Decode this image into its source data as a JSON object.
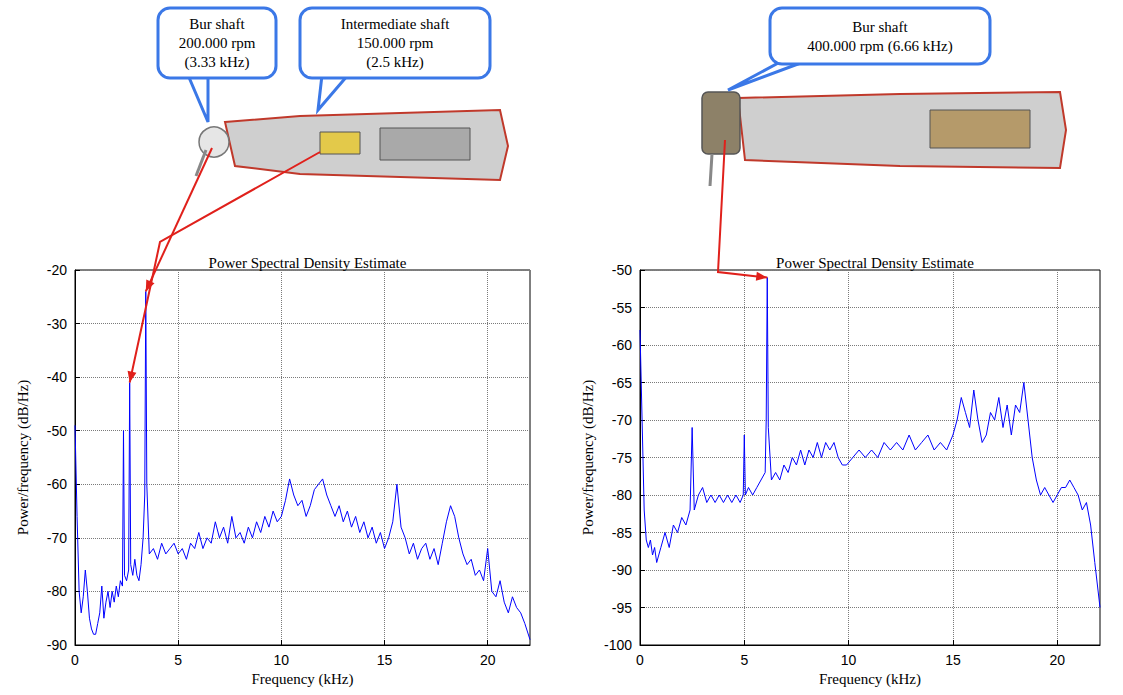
{
  "chart_data": [
    {
      "type": "line",
      "title": "Power Spectral Density Estimate",
      "x_label": "Frequency (kHz)",
      "y_label": "Power/frequency (dB/Hz)",
      "color": "#0000ff",
      "grid": true,
      "xlim": [
        0,
        22.05
      ],
      "xticks": [
        0,
        5,
        10,
        15,
        20
      ],
      "ylim": [
        -90,
        -20
      ],
      "yticks": [
        -90,
        -80,
        -70,
        -60,
        -50,
        -40,
        -30,
        -20
      ],
      "x": [
        0,
        0.1,
        0.2,
        0.3,
        0.4,
        0.5,
        0.6,
        0.7,
        0.8,
        0.9,
        1.0,
        1.1,
        1.2,
        1.3,
        1.4,
        1.5,
        1.6,
        1.7,
        1.8,
        1.9,
        2.0,
        2.1,
        2.2,
        2.3,
        2.35,
        2.4,
        2.5,
        2.6,
        2.65,
        2.7,
        2.8,
        2.9,
        3.0,
        3.1,
        3.2,
        3.3,
        3.38,
        3.43,
        3.48,
        3.6,
        3.8,
        4.0,
        4.2,
        4.4,
        4.6,
        4.8,
        5.0,
        5.2,
        5.4,
        5.6,
        5.8,
        6.0,
        6.2,
        6.4,
        6.6,
        6.8,
        7.0,
        7.2,
        7.4,
        7.6,
        7.8,
        8.0,
        8.2,
        8.4,
        8.6,
        8.8,
        9.0,
        9.2,
        9.4,
        9.6,
        9.8,
        10.0,
        10.2,
        10.4,
        10.6,
        10.8,
        11.0,
        11.2,
        11.4,
        11.6,
        11.8,
        12.0,
        12.2,
        12.4,
        12.6,
        12.8,
        13.0,
        13.2,
        13.4,
        13.6,
        13.8,
        14.0,
        14.2,
        14.4,
        14.6,
        14.8,
        15.0,
        15.2,
        15.4,
        15.6,
        15.8,
        16.0,
        16.2,
        16.4,
        16.6,
        16.8,
        17.0,
        17.2,
        17.4,
        17.6,
        17.8,
        18.0,
        18.2,
        18.4,
        18.6,
        18.8,
        19.0,
        19.2,
        19.4,
        19.6,
        19.8,
        20.0,
        20.2,
        20.4,
        20.6,
        20.8,
        21.0,
        21.2,
        21.4,
        21.6,
        21.8,
        22.05
      ],
      "values": [
        -49,
        -66,
        -80,
        -84,
        -81,
        -76,
        -80,
        -85,
        -87,
        -88,
        -88,
        -86,
        -84,
        -79,
        -85,
        -82,
        -80,
        -83,
        -80,
        -82,
        -79,
        -81,
        -78,
        -79,
        -50,
        -77,
        -78,
        -76,
        -41,
        -75,
        -77,
        -74,
        -77,
        -78,
        -75,
        -70,
        -62,
        -24,
        -60,
        -73,
        -72,
        -74,
        -71,
        -73,
        -72,
        -71,
        -73,
        -72,
        -74,
        -71,
        -72,
        -69,
        -72,
        -70,
        -71,
        -67,
        -70,
        -68,
        -71,
        -66,
        -70,
        -69,
        -71,
        -68,
        -70,
        -67,
        -69,
        -66,
        -68,
        -65,
        -67,
        -66,
        -63,
        -59,
        -62,
        -64,
        -63,
        -66,
        -64,
        -61,
        -60,
        -59,
        -62,
        -64,
        -66,
        -64,
        -67,
        -65,
        -68,
        -66,
        -69,
        -67,
        -70,
        -68,
        -71,
        -69,
        -72,
        -70,
        -67,
        -60,
        -68,
        -70,
        -73,
        -71,
        -74,
        -72,
        -71,
        -74,
        -72,
        -75,
        -71,
        -67,
        -64,
        -66,
        -70,
        -73,
        -75,
        -74,
        -77,
        -76,
        -78,
        -72,
        -80,
        -81,
        -78,
        -82,
        -84,
        -81,
        -83,
        -84,
        -86,
        -89
      ],
      "annotations": [
        {
          "text": "Bur shaft\n200.000 rpm\n(3.33 kHz)",
          "x": 3.43,
          "y": -24
        },
        {
          "text": "Intermediate shaft\n150.000 rpm\n(2.5 kHz)",
          "x": 2.65,
          "y": -41
        }
      ]
    },
    {
      "type": "line",
      "title": "Power Spectral Density Estimate",
      "x_label": "Frequency (kHz)",
      "y_label": "Power/frequency (dB/Hz)",
      "color": "#0000ff",
      "grid": true,
      "xlim": [
        0,
        22.05
      ],
      "xticks": [
        0,
        5,
        10,
        15,
        20
      ],
      "ylim": [
        -100,
        -50
      ],
      "yticks": [
        -100,
        -95,
        -90,
        -85,
        -80,
        -75,
        -70,
        -65,
        -60,
        -55,
        -50
      ],
      "x": [
        0,
        0.1,
        0.2,
        0.3,
        0.4,
        0.5,
        0.6,
        0.7,
        0.8,
        0.9,
        1.0,
        1.2,
        1.4,
        1.6,
        1.8,
        2.0,
        2.2,
        2.4,
        2.5,
        2.6,
        2.8,
        3.0,
        3.2,
        3.4,
        3.6,
        3.8,
        4.0,
        4.2,
        4.4,
        4.6,
        4.8,
        4.95,
        5.0,
        5.05,
        5.2,
        5.4,
        5.6,
        5.8,
        6.0,
        6.05,
        6.1,
        6.15,
        6.3,
        6.5,
        6.7,
        6.9,
        7.1,
        7.3,
        7.5,
        7.7,
        7.9,
        8.1,
        8.3,
        8.5,
        8.7,
        8.9,
        9.1,
        9.3,
        9.5,
        9.7,
        9.9,
        10.2,
        10.5,
        10.8,
        11.1,
        11.4,
        11.7,
        12.0,
        12.3,
        12.6,
        12.9,
        13.2,
        13.5,
        13.8,
        14.1,
        14.4,
        14.7,
        15.0,
        15.2,
        15.4,
        15.6,
        15.8,
        16.0,
        16.2,
        16.4,
        16.6,
        16.8,
        17.0,
        17.2,
        17.4,
        17.6,
        17.8,
        18.0,
        18.2,
        18.4,
        18.6,
        18.8,
        19.0,
        19.2,
        19.4,
        19.6,
        19.8,
        20.0,
        20.2,
        20.4,
        20.6,
        20.8,
        21.0,
        21.2,
        21.4,
        21.6,
        21.8,
        22.05
      ],
      "values": [
        -58,
        -70,
        -82,
        -86,
        -87,
        -86,
        -88,
        -87,
        -89,
        -88,
        -87,
        -85,
        -87,
        -84,
        -85,
        -83,
        -84,
        -82,
        -71,
        -82,
        -80,
        -79,
        -81,
        -80,
        -81,
        -80,
        -81,
        -80,
        -81,
        -80,
        -81,
        -80,
        -72,
        -80,
        -79,
        -80,
        -79,
        -78,
        -77,
        -70,
        -51,
        -71,
        -78,
        -77,
        -78,
        -76,
        -77,
        -75,
        -76,
        -74,
        -76,
        -74,
        -75,
        -73,
        -75,
        -73,
        -74,
        -73,
        -75,
        -76,
        -76,
        -75,
        -74,
        -75,
        -74,
        -75,
        -73,
        -74,
        -73,
        -74,
        -72,
        -74,
        -73,
        -72,
        -74,
        -73,
        -74,
        -72,
        -70,
        -67,
        -69,
        -71,
        -66,
        -70,
        -73,
        -72,
        -69,
        -70,
        -67,
        -71,
        -68,
        -72,
        -68,
        -69,
        -65,
        -70,
        -75,
        -78,
        -80,
        -79,
        -80,
        -81,
        -80,
        -79,
        -79,
        -78,
        -79,
        -80,
        -82,
        -81,
        -84,
        -89,
        -95
      ],
      "annotations": [
        {
          "text": "Bur shaft\n400.000 rpm (6.66 kHz)",
          "x": 6.1,
          "y": -51
        }
      ]
    }
  ]
}
